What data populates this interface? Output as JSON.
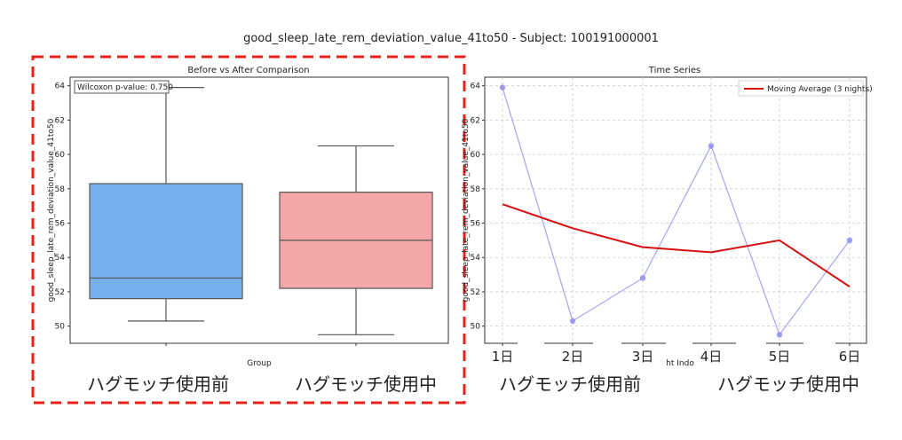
{
  "figure_title": "good_sleep_late_rem_deviation_value_41to50 - Subject: 100191000001",
  "chart_data": [
    {
      "type": "box",
      "title": "Before vs After Comparison",
      "xlabel": "Group",
      "ylabel": "good_sleep_late_rem_deviation_value_41to50",
      "ylim": [
        49,
        64.5
      ],
      "yticks": [
        50,
        52,
        54,
        56,
        58,
        60,
        62,
        64
      ],
      "annotation": "Wilcoxon p-value: 0.750",
      "groups": [
        {
          "name": "ハグモッチ使用前",
          "min": 50.3,
          "q1": 51.6,
          "median": 52.8,
          "q3": 58.3,
          "max": 63.9,
          "color": "#77b1ed"
        },
        {
          "name": "ハグモッチ使用中",
          "min": 49.5,
          "q1": 52.2,
          "median": 55.0,
          "q3": 57.8,
          "max": 60.5,
          "color": "#f4a6a9"
        }
      ],
      "highlight_border_color": "#e8221a"
    },
    {
      "type": "line",
      "title": "Time Series",
      "xlabel": "ht Indo",
      "ylabel": "good_sleep_late_rem_deviation_value_41to50",
      "ylim": [
        49,
        64.5
      ],
      "yticks": [
        50,
        52,
        54,
        56,
        58,
        60,
        62,
        64
      ],
      "x": [
        "1日",
        "2日",
        "3日",
        "4日",
        "5日",
        "6日"
      ],
      "series": [
        {
          "values": [
            63.9,
            50.3,
            52.8,
            60.5,
            49.5,
            55.0
          ],
          "color": "#8f8ff0",
          "style": "line-markers"
        },
        {
          "name": "Moving Average (3 nights)",
          "values": [
            57.1,
            55.7,
            54.6,
            54.3,
            55.0,
            52.3
          ],
          "color": "#d80f0f"
        }
      ],
      "legend": "top-right",
      "grid": true,
      "group_labels": [
        "ハグモッチ使用前",
        "ハグモッチ使用中"
      ]
    }
  ]
}
